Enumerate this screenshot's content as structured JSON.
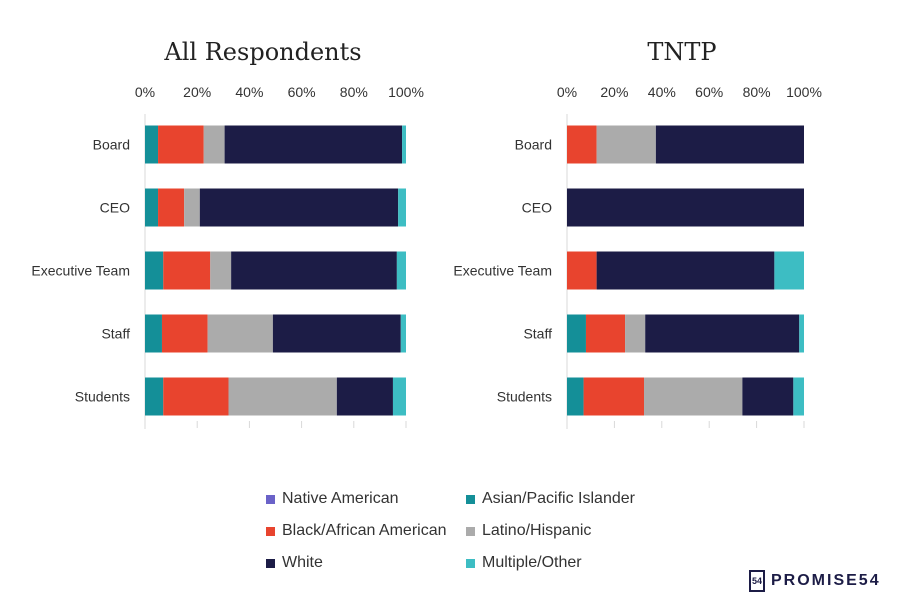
{
  "colors": {
    "Native American": "#6a62c8",
    "Asian/Pacific Islander": "#148f98",
    "Black/African American": "#e8442e",
    "Latino/Hispanic": "#ababab",
    "White": "#1c1c46",
    "Multiple/Other": "#3dbdc3"
  },
  "chart_data": [
    {
      "type": "bar",
      "orientation": "horizontal",
      "stacked": true,
      "title": "All Respondents",
      "categories": [
        "Board",
        "CEO",
        "Executive Team",
        "Staff",
        "Students"
      ],
      "xlim": [
        0,
        100
      ],
      "xticks": [
        "0%",
        "20%",
        "40%",
        "60%",
        "80%",
        "100%"
      ],
      "series": [
        {
          "name": "Native American",
          "values": [
            0,
            0,
            0,
            0,
            0
          ]
        },
        {
          "name": "Asian/Pacific Islander",
          "values": [
            5,
            5,
            7,
            6.5,
            7
          ]
        },
        {
          "name": "Black/African American",
          "values": [
            17.5,
            10,
            18,
            17.5,
            25
          ]
        },
        {
          "name": "Latino/Hispanic",
          "values": [
            8,
            6,
            8,
            25,
            41.5
          ]
        },
        {
          "name": "White",
          "values": [
            68,
            76,
            63.5,
            49,
            21.5
          ]
        },
        {
          "name": "Multiple/Other",
          "values": [
            1.5,
            3,
            3.5,
            2,
            5
          ]
        }
      ]
    },
    {
      "type": "bar",
      "orientation": "horizontal",
      "stacked": true,
      "title": "TNTP",
      "categories": [
        "Board",
        "CEO",
        "Executive Team",
        "Staff",
        "Students"
      ],
      "xlim": [
        0,
        100
      ],
      "xticks": [
        "0%",
        "20%",
        "40%",
        "60%",
        "80%",
        "100%"
      ],
      "series": [
        {
          "name": "Native American",
          "values": [
            0,
            0,
            0,
            0,
            0
          ]
        },
        {
          "name": "Asian/Pacific Islander",
          "values": [
            0,
            0,
            0,
            8,
            7
          ]
        },
        {
          "name": "Black/African American",
          "values": [
            12.5,
            0,
            12.5,
            16.5,
            25.5
          ]
        },
        {
          "name": "Latino/Hispanic",
          "values": [
            25,
            0,
            0,
            8.5,
            41.5
          ]
        },
        {
          "name": "White",
          "values": [
            62.5,
            100,
            75,
            65,
            21.5
          ]
        },
        {
          "name": "Multiple/Other",
          "values": [
            0,
            0,
            12.5,
            2,
            4.5
          ]
        }
      ]
    }
  ],
  "legend": [
    "Native American",
    "Asian/Pacific Islander",
    "Black/African American",
    "Latino/Hispanic",
    "White",
    "Multiple/Other"
  ],
  "logo": {
    "text": "PROMISE54",
    "mark": "54"
  }
}
